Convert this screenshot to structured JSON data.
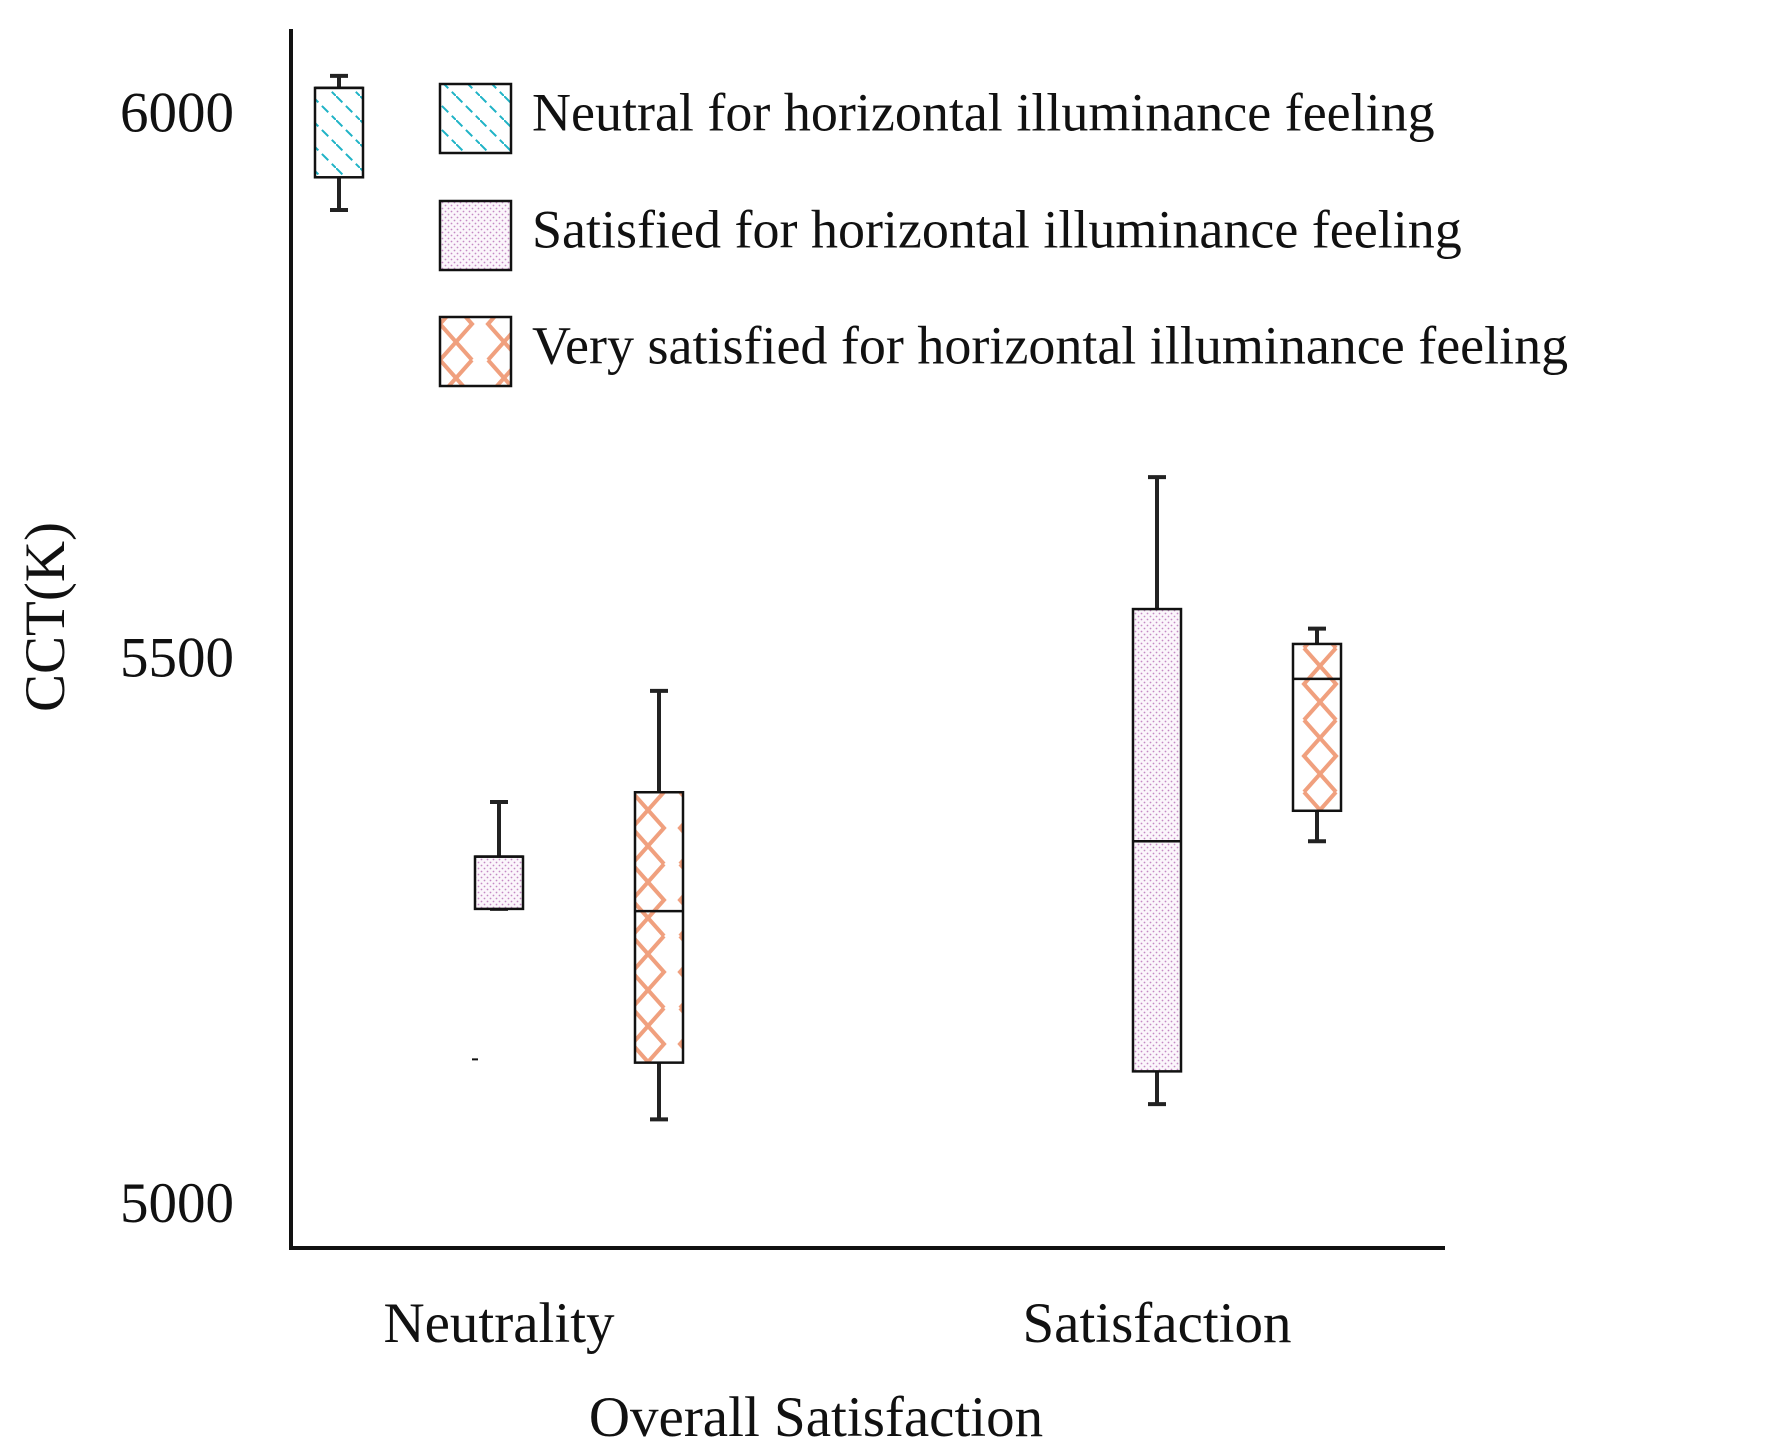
{
  "chart_data": {
    "type": "box",
    "xlabel": "Overall Satisfaction",
    "ylabel": "CCT(K)",
    "categories": [
      "Neutrality",
      "Satisfaction"
    ],
    "ylim": [
      4964,
      6082
    ],
    "yticks": [
      5000,
      5500,
      6000
    ],
    "grid": false,
    "legend": "upper right",
    "series": [
      {
        "name": "Neutral for horizontal illuminance feeling",
        "color": "#1fb3c6",
        "hatch": "diagonal",
        "low": [
          5916,
          null
        ],
        "q1": [
          5946,
          null
        ],
        "median": [
          6028,
          null
        ],
        "q3": [
          6028,
          null
        ],
        "high": [
          6039,
          null
        ],
        "outliers": [
          [],
          []
        ]
      },
      {
        "name": "Satisfied for horizontal illuminance feeling",
        "color": "#c48ac4",
        "hatch": "dots",
        "low": [
          5275,
          5096
        ],
        "q1": [
          5275,
          5126
        ],
        "median": [
          5323,
          5337
        ],
        "q3": [
          5323,
          5550
        ],
        "high": [
          5373,
          5671
        ],
        "outliers": [
          [
            5137
          ],
          []
        ]
      },
      {
        "name": "Very satisfied for horizontal illuminance feeling",
        "color": "#f0a07e",
        "hatch": "zigzag",
        "low": [
          5082,
          5337
        ],
        "q1": [
          5134,
          5365
        ],
        "median": [
          5273,
          5486
        ],
        "q3": [
          5382,
          5518
        ],
        "high": [
          5475,
          5532
        ],
        "outliers": [
          [],
          []
        ]
      }
    ]
  }
}
